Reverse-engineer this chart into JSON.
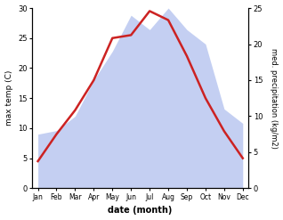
{
  "months": [
    "Jan",
    "Feb",
    "Mar",
    "Apr",
    "May",
    "Jun",
    "Jul",
    "Aug",
    "Sep",
    "Oct",
    "Nov",
    "Dec"
  ],
  "month_positions": [
    0,
    1,
    2,
    3,
    4,
    5,
    6,
    7,
    8,
    9,
    10,
    11
  ],
  "temperature": [
    4.5,
    9.0,
    13.0,
    18.0,
    25.0,
    25.5,
    29.5,
    28.0,
    22.0,
    15.0,
    9.5,
    5.0
  ],
  "precipitation": [
    7.5,
    8.0,
    10.0,
    15.0,
    19.0,
    24.0,
    22.0,
    25.0,
    22.0,
    20.0,
    11.0,
    9.0
  ],
  "temp_color": "#cc2222",
  "precip_fill_color": "#b0c0ee",
  "precip_fill_alpha": 0.75,
  "xlabel": "date (month)",
  "ylabel_left": "max temp (C)",
  "ylabel_right": "med. precipitation (kg/m2)",
  "ylim_left": [
    0,
    30
  ],
  "ylim_right": [
    0,
    25
  ],
  "yticks_left": [
    0,
    5,
    10,
    15,
    20,
    25,
    30
  ],
  "yticks_right": [
    0,
    5,
    10,
    15,
    20,
    25
  ],
  "background_color": "#ffffff",
  "line_width": 1.8
}
